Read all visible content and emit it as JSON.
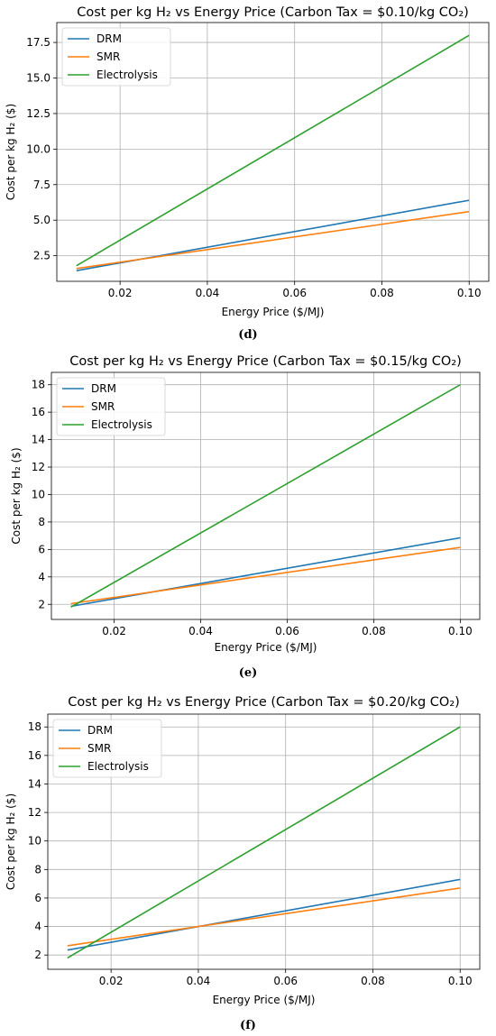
{
  "chart_data": [
    {
      "type": "line",
      "title": "Cost per kg H₂ vs Energy Price (Carbon Tax = $0.10/kg CO₂)",
      "xlabel": "Energy Price ($/MJ)",
      "ylabel": "Cost per kg H₂ ($)",
      "xlim": [
        0.0055,
        0.1045
      ],
      "ylim": [
        0.7,
        18.9
      ],
      "xticks": [
        "0.02",
        "0.04",
        "0.06",
        "0.08",
        "0.10"
      ],
      "yticks": [
        "2.5",
        "5.0",
        "7.5",
        "10.0",
        "12.5",
        "15.0",
        "17.5"
      ],
      "grid": true,
      "legend": "top-left",
      "series": [
        {
          "name": "DRM",
          "color": "#1f77b4",
          "x": [
            0.01,
            0.1
          ],
          "y": [
            1.45,
            6.4
          ]
        },
        {
          "name": "SMR",
          "color": "#ff7f0e",
          "x": [
            0.01,
            0.1
          ],
          "y": [
            1.6,
            5.6
          ]
        },
        {
          "name": "Electrolysis",
          "color": "#2ca02c",
          "x": [
            0.01,
            0.1
          ],
          "y": [
            1.8,
            18.0
          ]
        }
      ],
      "caption": "(d)"
    },
    {
      "type": "line",
      "title": "Cost per kg H₂ vs Energy Price (Carbon Tax = $0.15/kg CO₂)",
      "xlabel": "Energy Price ($/MJ)",
      "ylabel": "Cost per kg H₂ ($)",
      "xlim": [
        0.0055,
        0.1045
      ],
      "ylim": [
        0.9,
        18.9
      ],
      "xticks": [
        "0.02",
        "0.04",
        "0.06",
        "0.08",
        "0.10"
      ],
      "yticks": [
        "2",
        "4",
        "6",
        "8",
        "10",
        "12",
        "14",
        "16",
        "18"
      ],
      "grid": true,
      "legend": "top-left",
      "series": [
        {
          "name": "DRM",
          "color": "#1f77b4",
          "x": [
            0.01,
            0.1
          ],
          "y": [
            1.85,
            6.85
          ]
        },
        {
          "name": "SMR",
          "color": "#ff7f0e",
          "x": [
            0.01,
            0.1
          ],
          "y": [
            2.05,
            6.15
          ]
        },
        {
          "name": "Electrolysis",
          "color": "#2ca02c",
          "x": [
            0.01,
            0.1
          ],
          "y": [
            1.8,
            18.0
          ]
        }
      ],
      "caption": "(e)"
    },
    {
      "type": "line",
      "title": "Cost per kg H₂ vs Energy Price (Carbon Tax = $0.20/kg CO₂)",
      "xlabel": "Energy Price ($/MJ)",
      "ylabel": "Cost per kg H₂ ($)",
      "xlim": [
        0.0055,
        0.1045
      ],
      "ylim": [
        1.0,
        18.9
      ],
      "xticks": [
        "0.02",
        "0.04",
        "0.06",
        "0.08",
        "0.10"
      ],
      "yticks": [
        "2",
        "4",
        "6",
        "8",
        "10",
        "12",
        "14",
        "16",
        "18"
      ],
      "grid": true,
      "legend": "top-left",
      "series": [
        {
          "name": "DRM",
          "color": "#1f77b4",
          "x": [
            0.01,
            0.1
          ],
          "y": [
            2.35,
            7.3
          ]
        },
        {
          "name": "SMR",
          "color": "#ff7f0e",
          "x": [
            0.01,
            0.1
          ],
          "y": [
            2.65,
            6.7
          ]
        },
        {
          "name": "Electrolysis",
          "color": "#2ca02c",
          "x": [
            0.01,
            0.1
          ],
          "y": [
            1.8,
            18.0
          ]
        }
      ],
      "caption": "(f)"
    }
  ]
}
